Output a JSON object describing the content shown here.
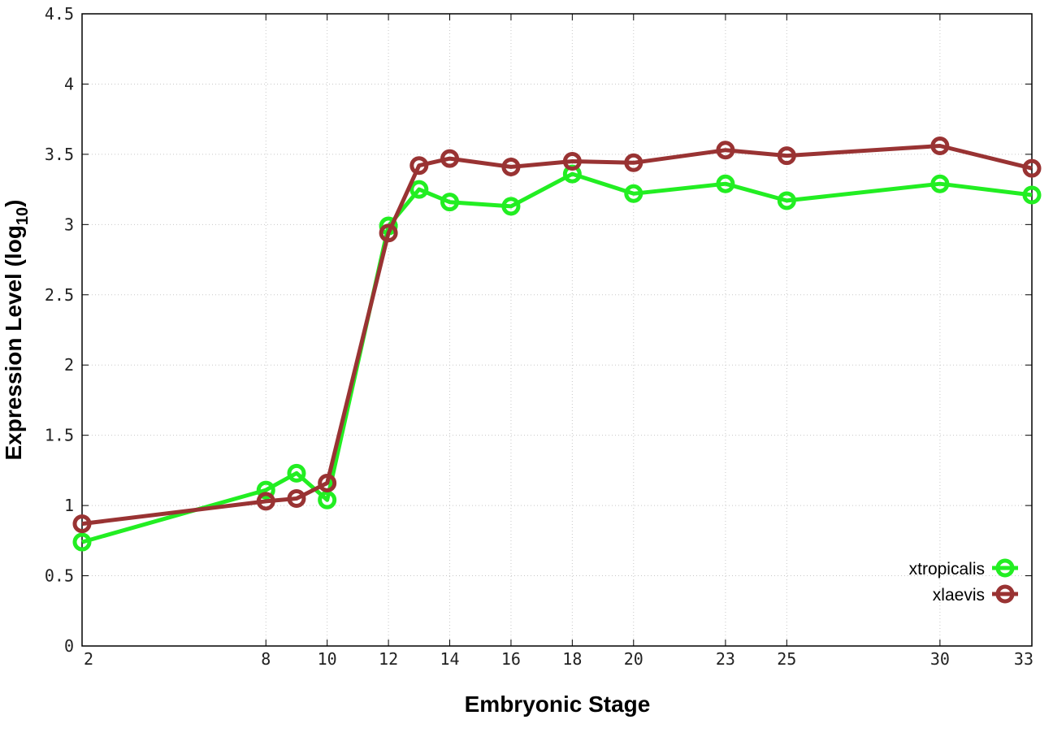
{
  "chart_data": {
    "type": "line",
    "xlabel": "Embryonic Stage",
    "ylabel_main": "Expression Level (log",
    "ylabel_sub": "10",
    "ylabel_close": ")",
    "xlim": [
      2,
      33
    ],
    "ylim": [
      0,
      4.5
    ],
    "x_ticks": [
      2,
      8,
      10,
      12,
      14,
      16,
      18,
      20,
      23,
      25,
      30,
      33
    ],
    "x_tick_labels": [
      "2",
      "8",
      "10",
      "12",
      "14",
      "16",
      "18",
      "20",
      "23",
      "25",
      "30",
      "33"
    ],
    "y_ticks": [
      0,
      0.5,
      1,
      1.5,
      2,
      2.5,
      3,
      3.5,
      4,
      4.5
    ],
    "y_tick_labels": [
      "0",
      "0.5",
      "1",
      "1.5",
      "2",
      "2.5",
      "3",
      "3.5",
      "4",
      "4.5"
    ],
    "grid": true,
    "legend_position": "bottom-right",
    "x": [
      2,
      8,
      9,
      10,
      12,
      13,
      14,
      16,
      18,
      20,
      23,
      25,
      30,
      33
    ],
    "series": [
      {
        "name": "xtropicalis",
        "color": "#22ee22",
        "values": [
          0.74,
          1.11,
          1.23,
          1.04,
          2.99,
          3.25,
          3.16,
          3.13,
          3.36,
          3.22,
          3.29,
          3.17,
          3.29,
          3.21
        ]
      },
      {
        "name": "xlaevis",
        "color": "#993333",
        "values": [
          0.87,
          1.03,
          1.05,
          1.16,
          2.94,
          3.42,
          3.47,
          3.41,
          3.45,
          3.44,
          3.53,
          3.49,
          3.56,
          3.4
        ]
      }
    ]
  }
}
